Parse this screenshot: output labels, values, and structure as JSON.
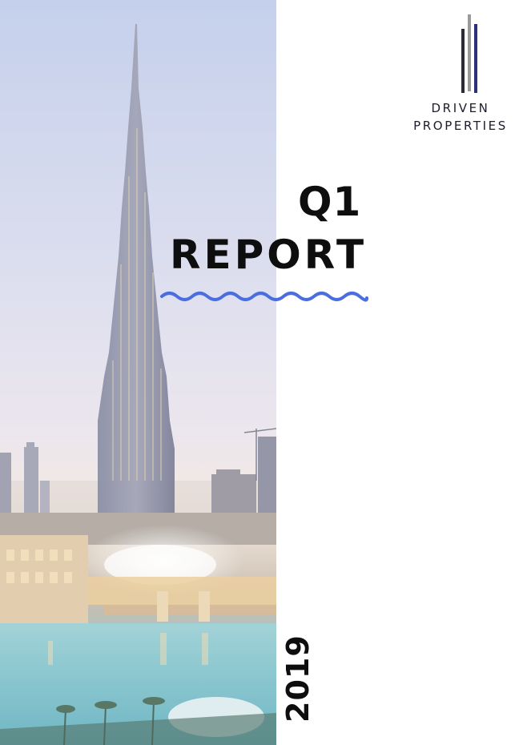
{
  "cover": {
    "brand": {
      "line1": "DRIVEN",
      "line2": "PROPERTIES",
      "icon": "vertical-bars-logo-icon",
      "bar_colors": [
        "#2b2b36",
        "#9a9a9a",
        "#2e2f7a"
      ]
    },
    "title": {
      "line1": "Q1",
      "line2": "REPORT"
    },
    "year": "2019",
    "accent_color": "#4a6de0",
    "photo": "city-skyline-tower-photo"
  }
}
